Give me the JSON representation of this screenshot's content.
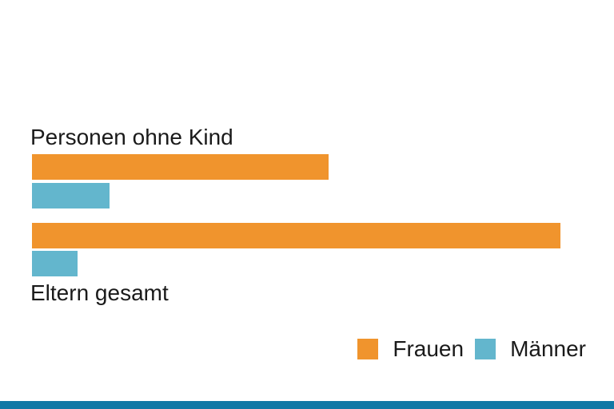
{
  "chart_data": {
    "type": "bar",
    "orientation": "horizontal",
    "title": "",
    "xlabel": "",
    "ylabel": "",
    "categories": [
      "Personen ohne Kind",
      "Eltern gesamt"
    ],
    "series": [
      {
        "name": "Frauen",
        "color": "#F0942D",
        "values": [
          37.1,
          66.1
        ]
      },
      {
        "name": "Männer",
        "color": "#63B6CD",
        "values": [
          9.7,
          5.7
        ]
      }
    ],
    "xlim": [
      0,
      100
    ],
    "grid": false,
    "legend_position": "bottom-right"
  },
  "labels": {
    "group1": "Personen ohne Kind",
    "group2": "Eltern gesamt"
  },
  "legend": {
    "items": [
      {
        "label": "Frauen",
        "color": "#F0942D"
      },
      {
        "label": "Männer",
        "color": "#63B6CD"
      }
    ]
  },
  "colors": {
    "frauen": "#F0942D",
    "maenner": "#63B6CD",
    "footer_bar": "#1178A5",
    "text": "#1A1A1A",
    "background": "#FFFFFF"
  }
}
